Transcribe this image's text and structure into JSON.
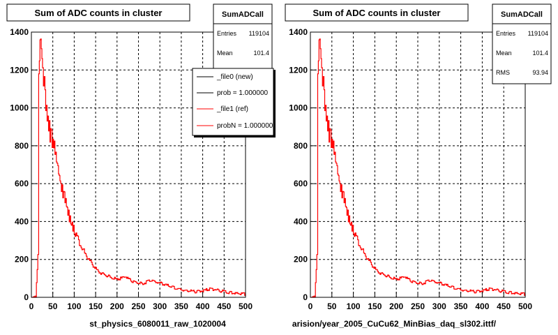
{
  "chart_data": [
    {
      "type": "line",
      "title": "Sum of ADC counts in cluster",
      "xlabel": "st_physics_6080011_raw_1020004",
      "ylabel": "",
      "xlim": [
        0,
        500
      ],
      "ylim": [
        0,
        1400
      ],
      "grid": true,
      "x_ticks": [
        0,
        50,
        100,
        150,
        200,
        250,
        300,
        350,
        400,
        450,
        500
      ],
      "y_ticks": [
        0,
        200,
        400,
        600,
        800,
        1000,
        1200,
        1400
      ],
      "stats": {
        "name": "SumADCall",
        "rows": [
          {
            "label": "Entries",
            "value": "119104"
          },
          {
            "label": "Mean",
            "value": "101.4"
          }
        ]
      },
      "legend": {
        "placement": "top-right",
        "entries": [
          {
            "label": "_file0 (new)",
            "color": "#000000"
          },
          {
            "label": "prob = 1.000000",
            "color": "#000000"
          },
          {
            "label": "_file1 (ref)",
            "color": "#ff0000"
          },
          {
            "label": "probN = 1.000000",
            "color": "#ff0000"
          }
        ]
      },
      "series": [
        {
          "color": "#ff0000",
          "x": [
            0,
            5,
            10,
            15,
            17,
            20,
            23,
            26,
            30,
            35,
            40,
            45,
            50,
            55,
            60,
            65,
            70,
            75,
            80,
            85,
            90,
            95,
            100,
            110,
            120,
            130,
            140,
            150,
            160,
            170,
            180,
            190,
            200,
            210,
            220,
            230,
            240,
            250,
            260,
            270,
            280,
            290,
            300,
            320,
            340,
            360,
            380,
            400,
            420,
            440,
            460,
            480,
            500
          ],
          "values": [
            0,
            0,
            0,
            220,
            1150,
            1300,
            1360,
            1250,
            1100,
            980,
            900,
            850,
            820,
            760,
            700,
            640,
            580,
            540,
            500,
            450,
            410,
            380,
            350,
            300,
            250,
            210,
            180,
            150,
            130,
            120,
            110,
            100,
            95,
            100,
            110,
            90,
            80,
            75,
            70,
            85,
            90,
            80,
            75,
            60,
            45,
            35,
            30,
            35,
            45,
            35,
            25,
            20,
            15
          ]
        }
      ]
    },
    {
      "type": "line",
      "title": "Sum of ADC counts in cluster",
      "xlabel": "arision/year_2005_CuCu62_MinBias_daq_sl302.ittf/",
      "ylabel": "",
      "xlim": [
        0,
        500
      ],
      "ylim": [
        0,
        1400
      ],
      "grid": true,
      "x_ticks": [
        0,
        50,
        100,
        150,
        200,
        250,
        300,
        350,
        400,
        450,
        500
      ],
      "y_ticks": [
        0,
        200,
        400,
        600,
        800,
        1000,
        1200,
        1400
      ],
      "stats": {
        "name": "SumADCall",
        "rows": [
          {
            "label": "Entries",
            "value": "119104"
          },
          {
            "label": "Mean",
            "value": "101.4"
          },
          {
            "label": "RMS",
            "value": "93.94"
          }
        ]
      },
      "series": [
        {
          "color": "#ff0000",
          "x": [
            0,
            5,
            10,
            15,
            17,
            20,
            23,
            26,
            30,
            35,
            40,
            45,
            50,
            55,
            60,
            65,
            70,
            75,
            80,
            85,
            90,
            95,
            100,
            110,
            120,
            130,
            140,
            150,
            160,
            170,
            180,
            190,
            200,
            210,
            220,
            230,
            240,
            250,
            260,
            270,
            280,
            290,
            300,
            320,
            340,
            360,
            380,
            400,
            420,
            440,
            460,
            480,
            500
          ],
          "values": [
            0,
            0,
            0,
            220,
            1150,
            1300,
            1360,
            1250,
            1100,
            980,
            900,
            850,
            820,
            760,
            700,
            640,
            580,
            540,
            500,
            450,
            410,
            380,
            350,
            300,
            250,
            210,
            180,
            150,
            130,
            120,
            110,
            100,
            95,
            100,
            110,
            90,
            80,
            75,
            70,
            85,
            90,
            80,
            75,
            60,
            45,
            35,
            30,
            35,
            45,
            35,
            25,
            20,
            15
          ]
        }
      ]
    }
  ]
}
